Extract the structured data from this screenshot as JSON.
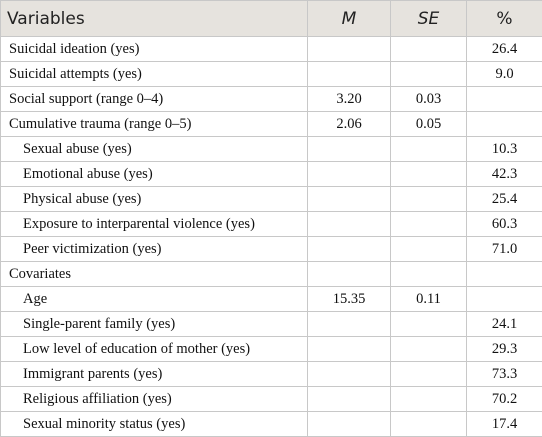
{
  "table": {
    "header": [
      "Variables",
      "M",
      "SE",
      "%"
    ],
    "rows": [
      {
        "label": "Suicidal ideation (yes)",
        "pct": "26.4"
      },
      {
        "label": "Suicidal attempts (yes)",
        "pct": "9.0"
      },
      {
        "label": "Social support (range 0–4)",
        "M": "3.20",
        "SE": "0.03"
      },
      {
        "label": "Cumulative trauma (range 0–5)",
        "M": "2.06",
        "SE": "0.05",
        "children": [
          {
            "label": "Sexual abuse (yes)",
            "pct": "10.3"
          },
          {
            "label": "Emotional abuse (yes)",
            "pct": "42.3"
          },
          {
            "label": "Physical abuse (yes)",
            "pct": "25.4"
          },
          {
            "label": "Exposure to interparental violence (yes)",
            "pct": "60.3"
          },
          {
            "label": "Peer victimization (yes)",
            "pct": "71.0"
          }
        ]
      },
      {
        "label": "Covariates",
        "children": [
          {
            "label": "Age",
            "M": "15.35",
            "SE": "0.11"
          },
          {
            "label": "Single-parent family (yes)",
            "pct": "24.1"
          },
          {
            "label": "Low level of education of mother (yes)",
            "pct": "29.3"
          },
          {
            "label": "Immigrant parents (yes)",
            "pct": "73.3"
          },
          {
            "label": "Religious affiliation (yes)",
            "pct": "70.2"
          },
          {
            "label": "Sexual minority status (yes)",
            "pct": "17.4"
          }
        ]
      }
    ]
  }
}
